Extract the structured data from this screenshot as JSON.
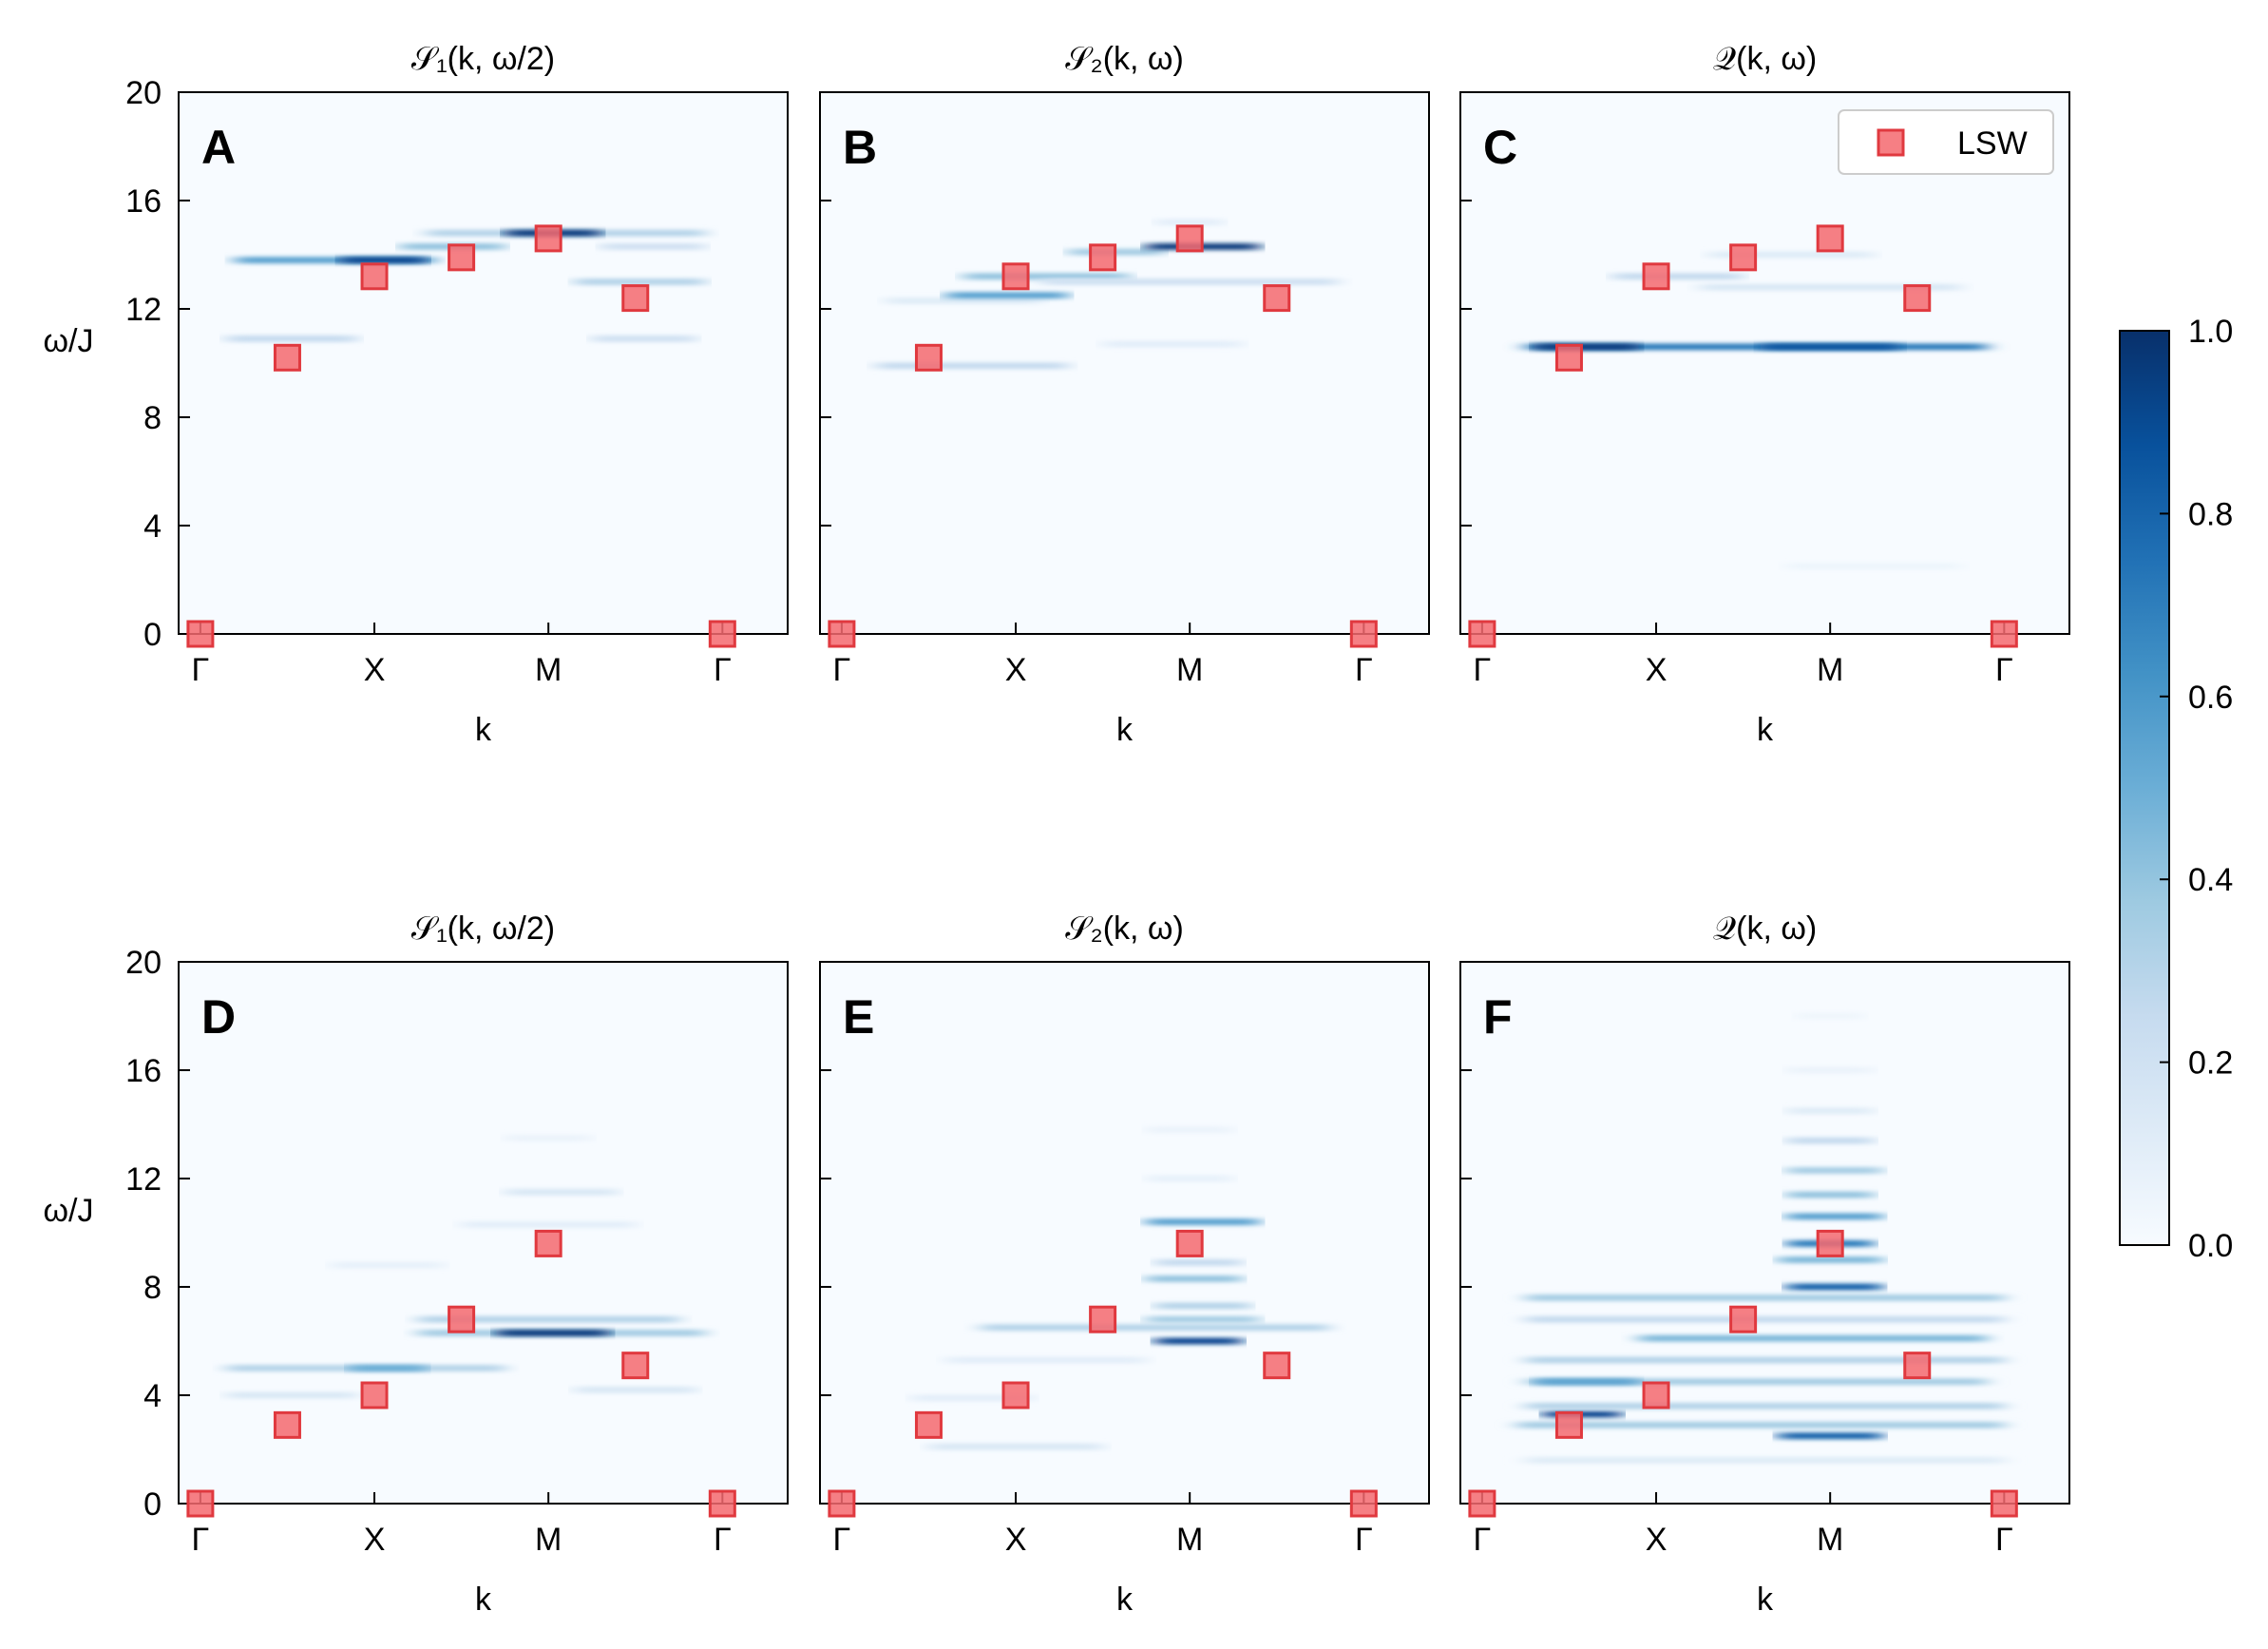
{
  "figure": {
    "colorbar": {
      "min": 0.0,
      "max": 1.0,
      "ticks": [
        0.0,
        0.2,
        0.4,
        0.6,
        0.8,
        1.0
      ],
      "tick_labels": [
        "0.0",
        "0.2",
        "0.4",
        "0.6",
        "0.8",
        "1.0"
      ],
      "colormap": "Blues",
      "low_color": "#f7fbff",
      "high_color": "#08306b"
    },
    "legend": {
      "label": "LSW",
      "marker_color": "#f4696e",
      "marker_edge": "#e0393f"
    }
  },
  "chart_data": [
    {
      "type": "heatmap",
      "panel_letter": "A",
      "title": "𝒮₁(k, ω/2)",
      "xlabel": "k",
      "ylabel": "ω/J",
      "ylim": [
        0,
        20
      ],
      "yticks": [
        0,
        4,
        8,
        12,
        16,
        20
      ],
      "ytick_labels": [
        "0",
        "4",
        "8",
        "12",
        "16",
        "20"
      ],
      "k_path_ticks": [
        0,
        2,
        4,
        6
      ],
      "k_path_labels": [
        "Γ",
        "X",
        "M",
        "Γ"
      ],
      "xlim": [
        -0.25,
        6.75
      ],
      "lsw": {
        "k": [
          0,
          1,
          2,
          3,
          4,
          5,
          6
        ],
        "omega": [
          0,
          10.2,
          13.2,
          13.9,
          14.6,
          12.4,
          0
        ]
      },
      "bands": [
        {
          "k0": 0.3,
          "k1": 1.8,
          "omega": 10.9,
          "intensity": 0.25
        },
        {
          "k0": 0.4,
          "k1": 2.7,
          "omega": 13.8,
          "intensity": 0.55
        },
        {
          "k0": 1.6,
          "k1": 2.6,
          "omega": 13.8,
          "intensity": 0.9
        },
        {
          "k0": 2.3,
          "k1": 3.5,
          "omega": 14.3,
          "intensity": 0.4
        },
        {
          "k0": 2.6,
          "k1": 5.8,
          "omega": 14.8,
          "intensity": 0.3
        },
        {
          "k0": 3.5,
          "k1": 4.6,
          "omega": 14.8,
          "intensity": 0.95
        },
        {
          "k0": 4.6,
          "k1": 5.8,
          "omega": 14.3,
          "intensity": 0.2
        },
        {
          "k0": 4.3,
          "k1": 5.8,
          "omega": 13.0,
          "intensity": 0.3
        },
        {
          "k0": 4.5,
          "k1": 5.7,
          "omega": 10.9,
          "intensity": 0.2
        }
      ]
    },
    {
      "type": "heatmap",
      "panel_letter": "B",
      "title": "𝒮₂(k, ω)",
      "xlabel": "k",
      "ylabel": "",
      "ylim": [
        0,
        20
      ],
      "yticks": [
        0,
        4,
        8,
        12,
        16,
        20
      ],
      "ytick_labels": [
        "",
        "",
        "",
        "",
        "",
        ""
      ],
      "k_path_ticks": [
        0,
        2,
        4,
        6
      ],
      "k_path_labels": [
        "Γ",
        "X",
        "M",
        "Γ"
      ],
      "xlim": [
        -0.25,
        6.75
      ],
      "lsw": {
        "k": [
          0,
          1,
          2,
          3,
          4,
          5,
          6
        ],
        "omega": [
          0,
          10.2,
          13.2,
          13.9,
          14.6,
          12.4,
          0
        ]
      },
      "bands": [
        {
          "k0": 0.4,
          "k1": 2.6,
          "omega": 9.9,
          "intensity": 0.25
        },
        {
          "k0": 0.5,
          "k1": 2.3,
          "omega": 12.3,
          "intensity": 0.12
        },
        {
          "k0": 1.2,
          "k1": 2.6,
          "omega": 12.5,
          "intensity": 0.55
        },
        {
          "k0": 1.4,
          "k1": 3.3,
          "omega": 13.2,
          "intensity": 0.4
        },
        {
          "k0": 2.3,
          "k1": 5.7,
          "omega": 13.0,
          "intensity": 0.2
        },
        {
          "k0": 2.6,
          "k1": 3.7,
          "omega": 14.1,
          "intensity": 0.35
        },
        {
          "k0": 3.5,
          "k1": 4.8,
          "omega": 14.3,
          "intensity": 0.95
        },
        {
          "k0": 3.0,
          "k1": 4.6,
          "omega": 10.7,
          "intensity": 0.1
        },
        {
          "k0": 3.6,
          "k1": 4.4,
          "omega": 15.2,
          "intensity": 0.1
        }
      ]
    },
    {
      "type": "heatmap",
      "panel_letter": "C",
      "title": "𝒬(k, ω)",
      "xlabel": "k",
      "ylabel": "",
      "ylim": [
        0,
        20
      ],
      "yticks": [
        0,
        4,
        8,
        12,
        16,
        20
      ],
      "ytick_labels": [
        "",
        "",
        "",
        "",
        "",
        ""
      ],
      "k_path_ticks": [
        0,
        2,
        4,
        6
      ],
      "k_path_labels": [
        "Γ",
        "X",
        "M",
        "Γ"
      ],
      "xlim": [
        -0.25,
        6.75
      ],
      "legend_visible": true,
      "lsw": {
        "k": [
          0,
          1,
          2,
          3,
          4,
          5,
          6
        ],
        "omega": [
          0,
          10.2,
          13.2,
          13.9,
          14.6,
          12.4,
          0
        ]
      },
      "bands": [
        {
          "k0": 0.5,
          "k1": 5.8,
          "omega": 10.6,
          "intensity": 0.7
        },
        {
          "k0": 0.6,
          "k1": 1.8,
          "omega": 10.6,
          "intensity": 0.95
        },
        {
          "k0": 3.2,
          "k1": 4.8,
          "omega": 10.6,
          "intensity": 0.85
        },
        {
          "k0": 1.5,
          "k1": 3.0,
          "omega": 13.2,
          "intensity": 0.25
        },
        {
          "k0": 2.5,
          "k1": 5.5,
          "omega": 12.8,
          "intensity": 0.15
        },
        {
          "k0": 2.6,
          "k1": 4.5,
          "omega": 14.0,
          "intensity": 0.12
        },
        {
          "k0": 3.5,
          "k1": 5.5,
          "omega": 2.5,
          "intensity": 0.05
        }
      ]
    },
    {
      "type": "heatmap",
      "panel_letter": "D",
      "title": "𝒮₁(k, ω/2)",
      "xlabel": "k",
      "ylabel": "ω/J",
      "ylim": [
        0,
        20
      ],
      "yticks": [
        0,
        4,
        8,
        12,
        16,
        20
      ],
      "ytick_labels": [
        "0",
        "4",
        "8",
        "12",
        "16",
        "20"
      ],
      "k_path_ticks": [
        0,
        2,
        4,
        6
      ],
      "k_path_labels": [
        "Γ",
        "X",
        "M",
        "Γ"
      ],
      "xlim": [
        -0.25,
        6.75
      ],
      "lsw": {
        "k": [
          0,
          1,
          2,
          3,
          4,
          5,
          6
        ],
        "omega": [
          0,
          2.9,
          4.0,
          6.8,
          9.6,
          5.1,
          0
        ]
      },
      "bands": [
        {
          "k0": 0.3,
          "k1": 1.8,
          "omega": 4.0,
          "intensity": 0.15
        },
        {
          "k0": 0.3,
          "k1": 3.5,
          "omega": 5.0,
          "intensity": 0.3
        },
        {
          "k0": 1.7,
          "k1": 2.6,
          "omega": 5.0,
          "intensity": 0.5
        },
        {
          "k0": 2.5,
          "k1": 5.8,
          "omega": 6.3,
          "intensity": 0.35
        },
        {
          "k0": 3.4,
          "k1": 4.7,
          "omega": 6.3,
          "intensity": 0.95
        },
        {
          "k0": 2.5,
          "k1": 5.5,
          "omega": 6.8,
          "intensity": 0.3
        },
        {
          "k0": 4.3,
          "k1": 5.7,
          "omega": 4.2,
          "intensity": 0.15
        },
        {
          "k0": 1.5,
          "k1": 2.8,
          "omega": 8.8,
          "intensity": 0.08
        },
        {
          "k0": 3.0,
          "k1": 5.0,
          "omega": 10.3,
          "intensity": 0.1
        },
        {
          "k0": 3.5,
          "k1": 4.8,
          "omega": 11.5,
          "intensity": 0.15
        },
        {
          "k0": 3.5,
          "k1": 4.5,
          "omega": 13.5,
          "intensity": 0.06
        }
      ]
    },
    {
      "type": "heatmap",
      "panel_letter": "E",
      "title": "𝒮₂(k, ω)",
      "xlabel": "k",
      "ylabel": "",
      "ylim": [
        0,
        20
      ],
      "yticks": [
        0,
        4,
        8,
        12,
        16,
        20
      ],
      "ytick_labels": [
        "",
        "",
        "",
        "",
        "",
        ""
      ],
      "k_path_ticks": [
        0,
        2,
        4,
        6
      ],
      "k_path_labels": [
        "Γ",
        "X",
        "M",
        "Γ"
      ],
      "xlim": [
        -0.25,
        6.75
      ],
      "lsw": {
        "k": [
          0,
          1,
          2,
          3,
          4,
          5,
          6
        ],
        "omega": [
          0,
          2.9,
          4.0,
          6.8,
          9.6,
          5.1,
          0
        ]
      },
      "bands": [
        {
          "k0": 1.0,
          "k1": 3.0,
          "omega": 2.1,
          "intensity": 0.15
        },
        {
          "k0": 0.8,
          "k1": 2.2,
          "omega": 3.9,
          "intensity": 0.1
        },
        {
          "k0": 1.2,
          "k1": 3.5,
          "omega": 5.3,
          "intensity": 0.1
        },
        {
          "k0": 1.6,
          "k1": 5.6,
          "omega": 6.5,
          "intensity": 0.3
        },
        {
          "k0": 3.6,
          "k1": 4.6,
          "omega": 6.0,
          "intensity": 0.9
        },
        {
          "k0": 3.5,
          "k1": 4.8,
          "omega": 6.8,
          "intensity": 0.35
        },
        {
          "k0": 3.6,
          "k1": 4.7,
          "omega": 7.3,
          "intensity": 0.3
        },
        {
          "k0": 3.5,
          "k1": 4.6,
          "omega": 8.3,
          "intensity": 0.4
        },
        {
          "k0": 3.6,
          "k1": 4.6,
          "omega": 8.9,
          "intensity": 0.25
        },
        {
          "k0": 3.5,
          "k1": 4.8,
          "omega": 10.4,
          "intensity": 0.55
        },
        {
          "k0": 3.5,
          "k1": 4.5,
          "omega": 12.0,
          "intensity": 0.08
        },
        {
          "k0": 3.5,
          "k1": 4.5,
          "omega": 13.8,
          "intensity": 0.06
        }
      ]
    },
    {
      "type": "heatmap",
      "panel_letter": "F",
      "title": "𝒬(k, ω)",
      "xlabel": "k",
      "ylabel": "",
      "ylim": [
        0,
        20
      ],
      "yticks": [
        0,
        4,
        8,
        12,
        16,
        20
      ],
      "ytick_labels": [
        "",
        "",
        "",
        "",
        "",
        ""
      ],
      "k_path_ticks": [
        0,
        2,
        4,
        6
      ],
      "k_path_labels": [
        "Γ",
        "X",
        "M",
        "Γ"
      ],
      "xlim": [
        -0.25,
        6.75
      ],
      "lsw": {
        "k": [
          0,
          1,
          2,
          3,
          4,
          5,
          6
        ],
        "omega": [
          0,
          2.9,
          4.0,
          6.8,
          9.6,
          5.1,
          0
        ]
      },
      "bands": [
        {
          "k0": 0.5,
          "k1": 6.0,
          "omega": 1.6,
          "intensity": 0.12
        },
        {
          "k0": 3.4,
          "k1": 4.6,
          "omega": 2.5,
          "intensity": 0.8
        },
        {
          "k0": 0.4,
          "k1": 6.0,
          "omega": 2.9,
          "intensity": 0.35
        },
        {
          "k0": 0.7,
          "k1": 1.6,
          "omega": 3.3,
          "intensity": 0.9
        },
        {
          "k0": 0.5,
          "k1": 6.0,
          "omega": 3.6,
          "intensity": 0.3
        },
        {
          "k0": 0.5,
          "k1": 5.8,
          "omega": 4.5,
          "intensity": 0.35
        },
        {
          "k0": 0.6,
          "k1": 1.8,
          "omega": 4.5,
          "intensity": 0.55
        },
        {
          "k0": 0.5,
          "k1": 6.0,
          "omega": 5.3,
          "intensity": 0.3
        },
        {
          "k0": 1.8,
          "k1": 5.8,
          "omega": 6.1,
          "intensity": 0.45
        },
        {
          "k0": 0.5,
          "k1": 6.0,
          "omega": 6.8,
          "intensity": 0.25
        },
        {
          "k0": 0.5,
          "k1": 6.0,
          "omega": 7.6,
          "intensity": 0.35
        },
        {
          "k0": 3.5,
          "k1": 4.6,
          "omega": 8.0,
          "intensity": 0.8
        },
        {
          "k0": 3.4,
          "k1": 4.6,
          "omega": 9.0,
          "intensity": 0.45
        },
        {
          "k0": 3.5,
          "k1": 4.5,
          "omega": 9.6,
          "intensity": 0.7
        },
        {
          "k0": 3.5,
          "k1": 4.6,
          "omega": 10.6,
          "intensity": 0.55
        },
        {
          "k0": 3.5,
          "k1": 4.5,
          "omega": 11.4,
          "intensity": 0.4
        },
        {
          "k0": 3.5,
          "k1": 4.6,
          "omega": 12.3,
          "intensity": 0.35
        },
        {
          "k0": 3.5,
          "k1": 4.5,
          "omega": 13.4,
          "intensity": 0.25
        },
        {
          "k0": 3.5,
          "k1": 4.5,
          "omega": 14.5,
          "intensity": 0.12
        },
        {
          "k0": 3.5,
          "k1": 4.5,
          "omega": 16.0,
          "intensity": 0.06
        },
        {
          "k0": 3.6,
          "k1": 4.4,
          "omega": 18.0,
          "intensity": 0.04
        }
      ]
    }
  ]
}
